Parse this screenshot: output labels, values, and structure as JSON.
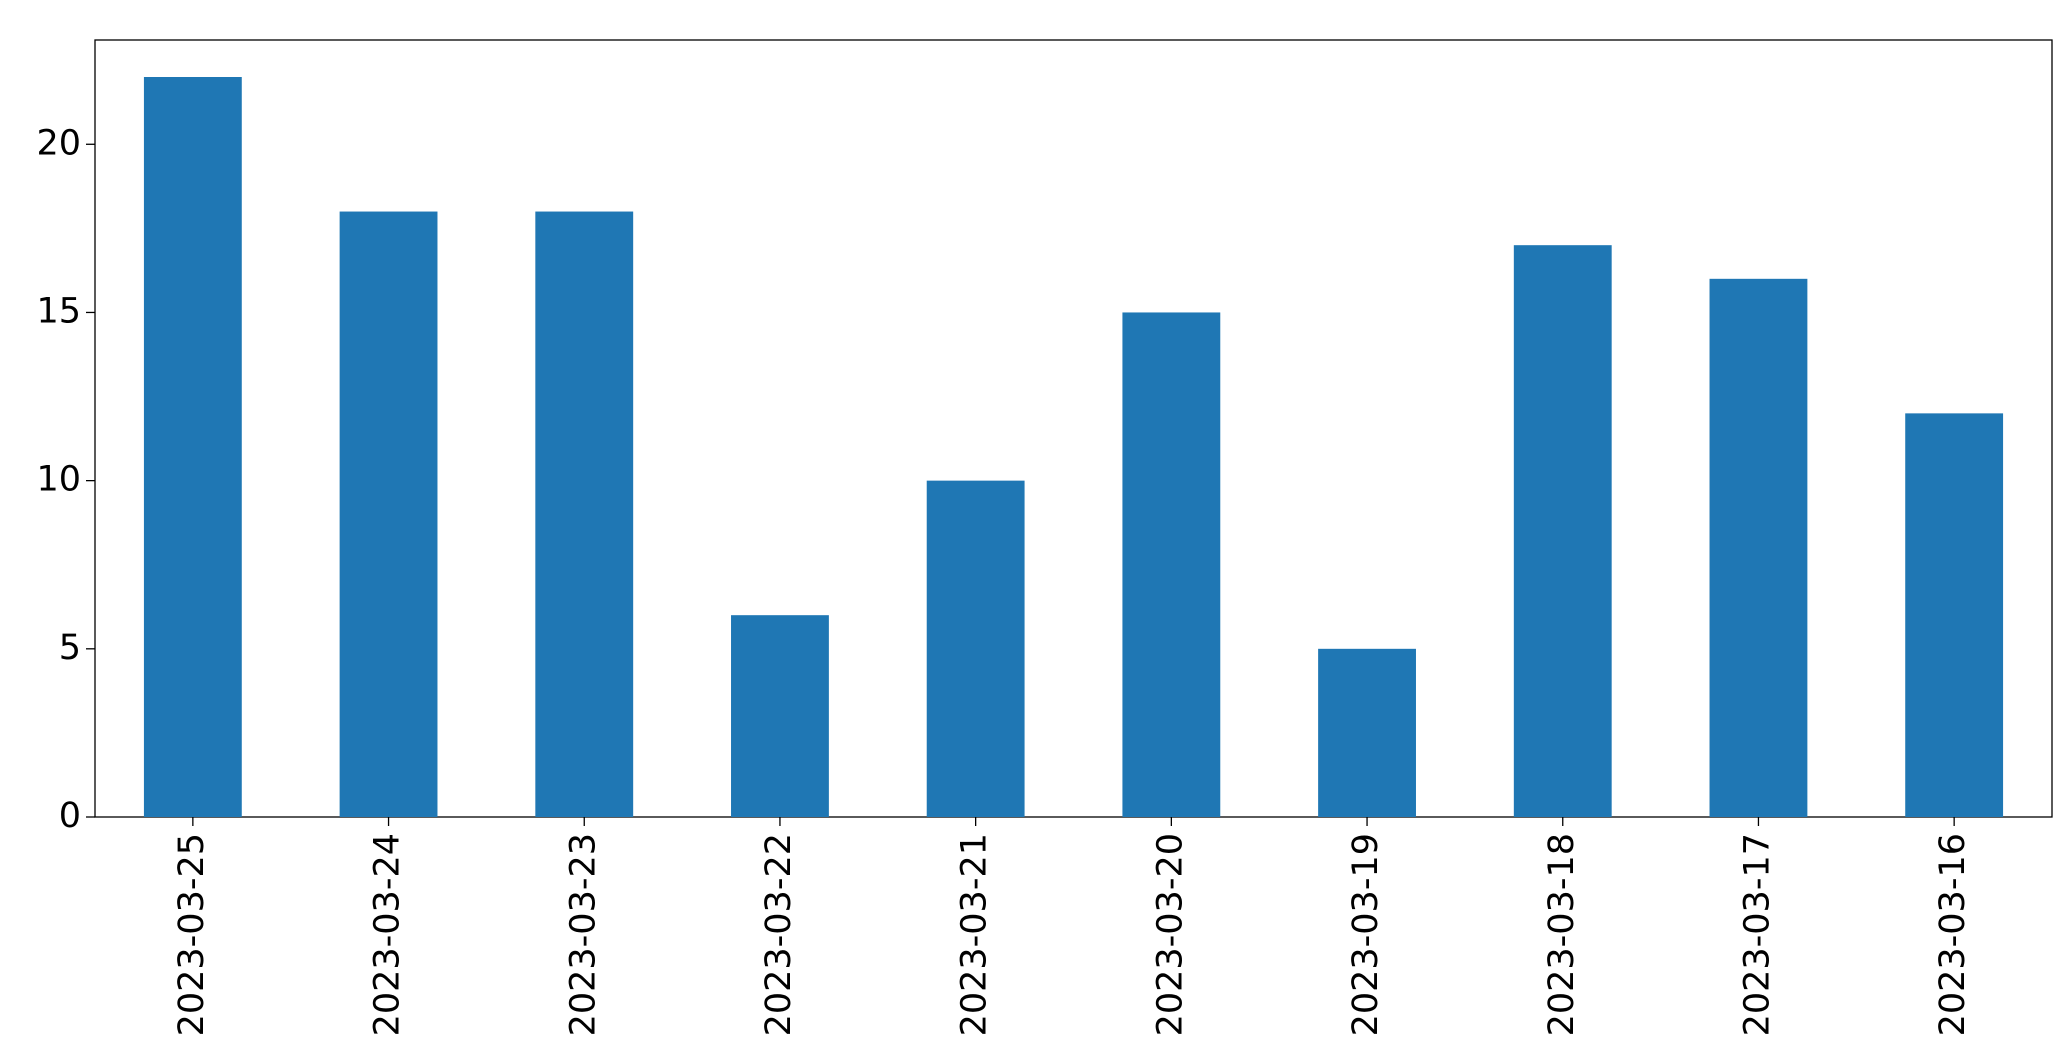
{
  "chart_data": {
    "type": "bar",
    "categories": [
      "2023-03-25",
      "2023-03-24",
      "2023-03-23",
      "2023-03-22",
      "2023-03-21",
      "2023-03-20",
      "2023-03-19",
      "2023-03-18",
      "2023-03-17",
      "2023-03-16"
    ],
    "values": [
      22,
      18,
      18,
      6,
      10,
      15,
      5,
      17,
      16,
      12
    ],
    "color": "#1f77b4",
    "ylim": [
      0,
      23.1
    ],
    "yticks": [
      0,
      5,
      10,
      15,
      20
    ],
    "grid": false
  }
}
